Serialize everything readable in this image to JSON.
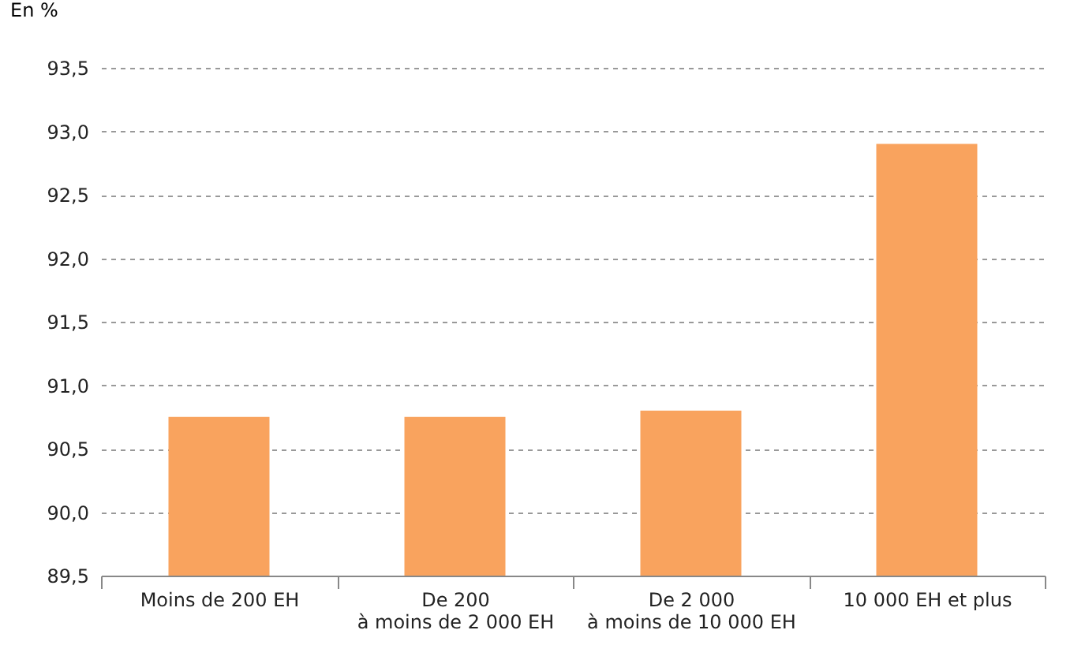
{
  "chart_data": {
    "type": "bar",
    "ylabel": "En %",
    "categories": [
      "Moins de 200 EH",
      "De 200\nà moins de 2 000 EH",
      "De 2 000\nà moins de 10 000 EH",
      "10 000 EH et plus"
    ],
    "values": [
      90.75,
      90.75,
      90.8,
      92.9
    ],
    "color": "#f9a35e",
    "ylim": [
      89.5,
      93.5
    ],
    "yticks": [
      {
        "value": 89.5,
        "label": "89,5"
      },
      {
        "value": 90,
        "label": "90,0"
      },
      {
        "value": 90.5,
        "label": "90,5"
      },
      {
        "value": 91,
        "label": "91,0"
      },
      {
        "value": 91.5,
        "label": "91,5"
      },
      {
        "value": 92,
        "label": "92,0"
      },
      {
        "value": 92.5,
        "label": "92,5"
      },
      {
        "value": 93,
        "label": "93,0"
      },
      {
        "value": 93.5,
        "label": "93,5"
      }
    ],
    "grid": "y"
  }
}
